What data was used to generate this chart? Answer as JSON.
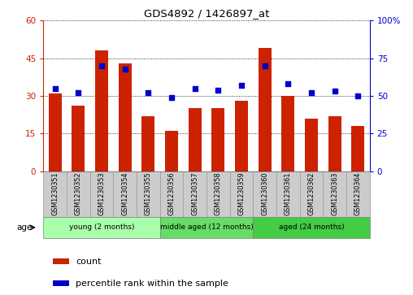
{
  "title": "GDS4892 / 1426897_at",
  "samples": [
    "GSM1230351",
    "GSM1230352",
    "GSM1230353",
    "GSM1230354",
    "GSM1230355",
    "GSM1230356",
    "GSM1230357",
    "GSM1230358",
    "GSM1230359",
    "GSM1230360",
    "GSM1230361",
    "GSM1230362",
    "GSM1230363",
    "GSM1230364"
  ],
  "counts": [
    31,
    26,
    48,
    43,
    22,
    16,
    25,
    25,
    28,
    49,
    30,
    21,
    22,
    18
  ],
  "percentiles": [
    55,
    52,
    70,
    68,
    52,
    49,
    55,
    54,
    57,
    70,
    58,
    52,
    53,
    50
  ],
  "bar_color": "#cc2200",
  "dot_color": "#0000cc",
  "left_ylim": [
    0,
    60
  ],
  "right_ylim": [
    0,
    100
  ],
  "left_yticks": [
    0,
    15,
    30,
    45,
    60
  ],
  "right_yticks": [
    0,
    25,
    50,
    75,
    100
  ],
  "right_yticklabels": [
    "0",
    "25",
    "50",
    "75",
    "100%"
  ],
  "groups": [
    {
      "label": "young (2 months)",
      "start": 0,
      "end": 5,
      "color": "#aaffaa"
    },
    {
      "label": "middle aged (12 months)",
      "start": 5,
      "end": 9,
      "color": "#66dd66"
    },
    {
      "label": "aged (24 months)",
      "start": 9,
      "end": 14,
      "color": "#44cc44"
    }
  ],
  "age_label": "age",
  "legend_count": "count",
  "legend_percentile": "percentile rank within the sample",
  "background_color": "#ffffff",
  "plot_bg_color": "#ffffff",
  "sample_box_color": "#cccccc",
  "sample_box_edge": "#999999"
}
